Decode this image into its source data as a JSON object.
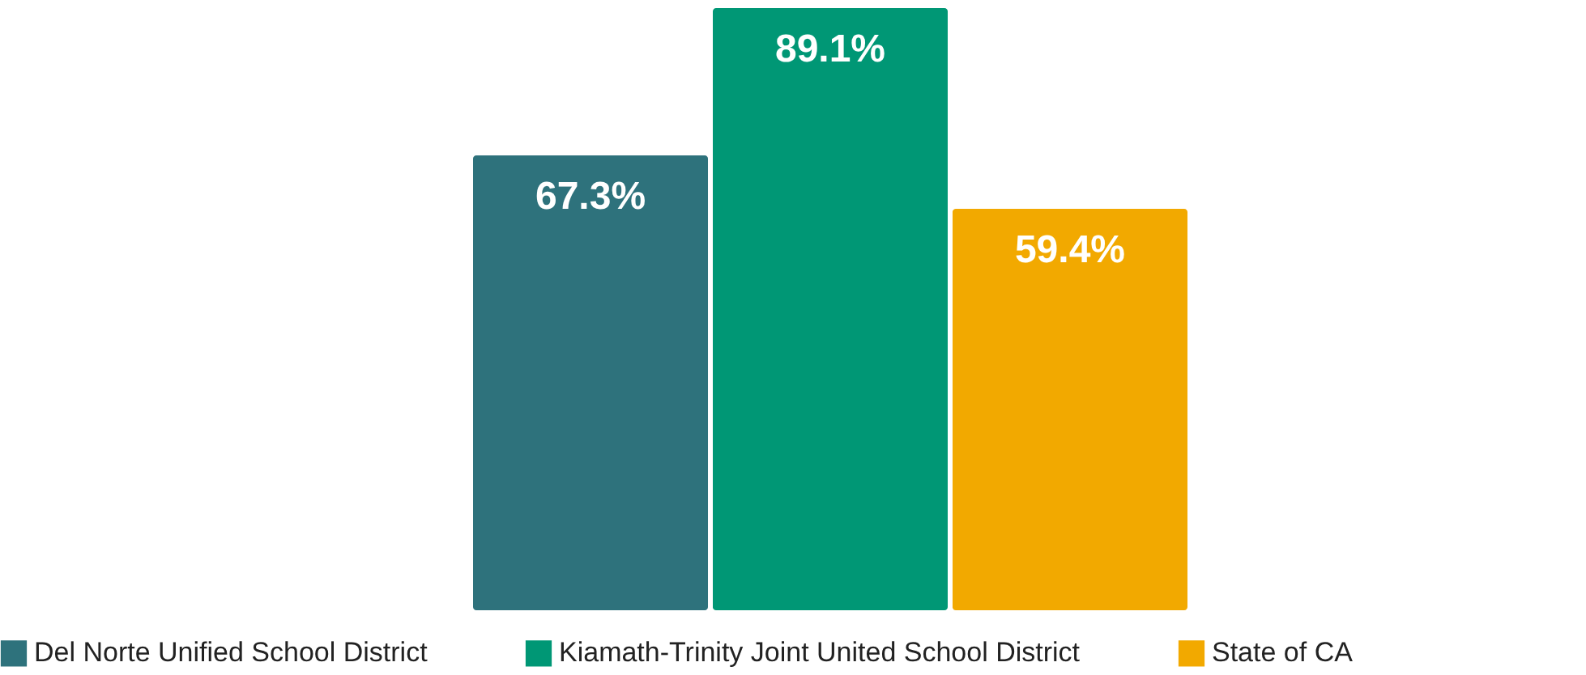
{
  "chart_data": {
    "type": "bar",
    "categories": [
      null
    ],
    "series": [
      {
        "name": "Del Norte Unified School District",
        "color": "#2e727c",
        "values": [
          67.3
        ],
        "value_labels": [
          "67.3%"
        ]
      },
      {
        "name": "Kiamath-Trinity Joint United School District",
        "color": "#009775",
        "values": [
          89.1
        ],
        "value_labels": [
          "89.1%"
        ]
      },
      {
        "name": "State of CA",
        "color": "#f2a900",
        "values": [
          59.4
        ],
        "value_labels": [
          "59.4%"
        ]
      }
    ],
    "legend": "bottom"
  }
}
